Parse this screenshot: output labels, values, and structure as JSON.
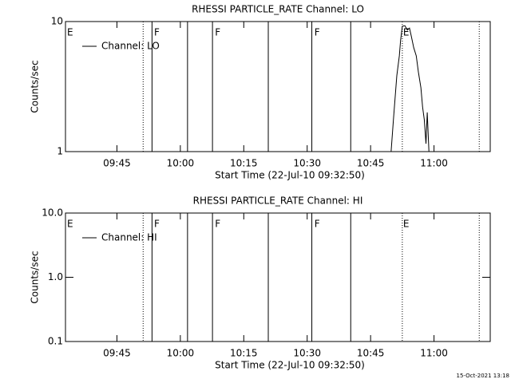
{
  "chart_data": [
    {
      "type": "line",
      "title": "RHESSI PARTICLE_RATE Channel: LO",
      "xlabel": "Start Time (22-Jul-10 09:32:50)",
      "ylabel": "Counts/sec",
      "xlim": [
        572.83,
        673.3
      ],
      "ylim": [
        1,
        10
      ],
      "log_y": true,
      "legend": "upper left",
      "xticks": [
        {
          "value": 585,
          "label": "09:45"
        },
        {
          "value": 600,
          "label": "10:00"
        },
        {
          "value": 615,
          "label": "10:15"
        },
        {
          "value": 630,
          "label": "10:30"
        },
        {
          "value": 645,
          "label": "10:45"
        },
        {
          "value": 660,
          "label": "11:00"
        }
      ],
      "yticks": [
        1,
        10
      ],
      "series": [
        {
          "name": "Channel: LO",
          "color": "#000000",
          "x": [
            649.85,
            650.4,
            651.2,
            651.8,
            652.1,
            652.5,
            653.1,
            653.7,
            654.2,
            654.6,
            655.2,
            655.8,
            656.3,
            656.9,
            657.3,
            657.7,
            658.1,
            658.4,
            658.8
          ],
          "values": [
            1,
            1.76,
            3.83,
            5.45,
            7.2,
            9.2,
            9.3,
            8.6,
            8.9,
            7.8,
            6.3,
            5.45,
            4.1,
            3.1,
            2.2,
            1.76,
            1.15,
            2.0,
            1
          ]
        }
      ],
      "markers": [
        {
          "x": 591.2,
          "style": "dotted"
        },
        {
          "x": 593.3,
          "style": "solid"
        },
        {
          "x": 601.7,
          "style": "solid"
        },
        {
          "x": 607.6,
          "style": "solid"
        },
        {
          "x": 620.8,
          "style": "solid"
        },
        {
          "x": 631.1,
          "style": "solid"
        },
        {
          "x": 640.3,
          "style": "solid"
        },
        {
          "x": 652.5,
          "style": "dotted"
        },
        {
          "x": 670.7,
          "style": "dotted"
        }
      ],
      "annotations": [
        {
          "text": "E",
          "x": 573.2
        },
        {
          "text": "F",
          "x": 593.8
        },
        {
          "text": "F",
          "x": 608.2
        },
        {
          "text": "F",
          "x": 631.7
        },
        {
          "text": "E",
          "x": 652.7
        }
      ]
    },
    {
      "type": "line",
      "title": "RHESSI PARTICLE_RATE Channel: HI",
      "xlabel": "Start Time (22-Jul-10 09:32:50)",
      "ylabel": "Counts/sec",
      "xlim": [
        572.83,
        673.3
      ],
      "ylim": [
        0.1,
        10
      ],
      "log_y": true,
      "legend": "upper left",
      "xticks": [
        {
          "value": 585,
          "label": "09:45"
        },
        {
          "value": 600,
          "label": "10:00"
        },
        {
          "value": 615,
          "label": "10:15"
        },
        {
          "value": 630,
          "label": "10:30"
        },
        {
          "value": 645,
          "label": "10:45"
        },
        {
          "value": 660,
          "label": "11:00"
        }
      ],
      "yticks": [
        0.1,
        {
          "value": 1,
          "label": "1.0"
        },
        {
          "value": 10,
          "label": "10.0"
        }
      ],
      "series": [
        {
          "name": "Channel: HI",
          "color": "#000000",
          "x": [],
          "values": []
        }
      ],
      "markers": [
        {
          "x": 591.2,
          "style": "dotted"
        },
        {
          "x": 593.3,
          "style": "solid"
        },
        {
          "x": 601.7,
          "style": "solid"
        },
        {
          "x": 607.6,
          "style": "solid"
        },
        {
          "x": 620.8,
          "style": "solid"
        },
        {
          "x": 631.1,
          "style": "solid"
        },
        {
          "x": 640.3,
          "style": "solid"
        },
        {
          "x": 652.5,
          "style": "dotted"
        },
        {
          "x": 670.7,
          "style": "dotted"
        }
      ],
      "annotations": [
        {
          "text": "E",
          "x": 573.2
        },
        {
          "text": "F",
          "x": 593.8
        },
        {
          "text": "F",
          "x": 608.2
        },
        {
          "text": "F",
          "x": 631.7
        },
        {
          "text": "E",
          "x": 652.7
        }
      ]
    }
  ],
  "footer": "15-Oct-2021 13:18"
}
